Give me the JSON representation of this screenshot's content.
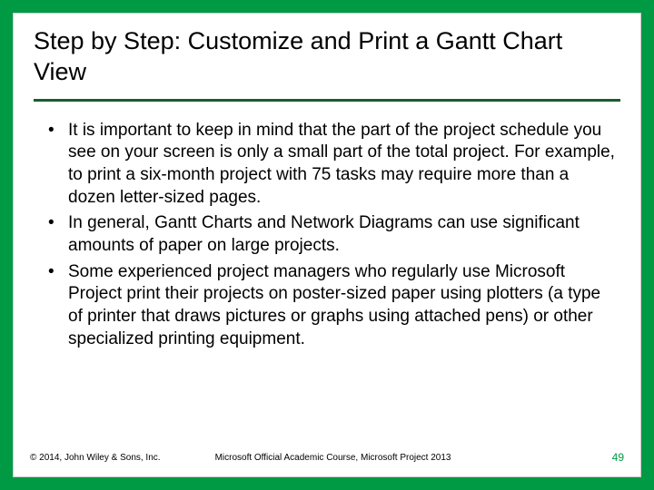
{
  "colors": {
    "frame": "#009a44",
    "slide_bg": "#ffffff",
    "slide_border": "#cccccc",
    "title_underline": "#1a5c2e",
    "text": "#000000",
    "page_number": "#009a44"
  },
  "typography": {
    "title_fontsize": 27,
    "title_weight": 400,
    "body_fontsize": 19,
    "footer_fontsize": 10,
    "page_number_fontsize": 12,
    "font_family": "Arial"
  },
  "layout": {
    "frame_padding": 14,
    "title_padding_x": 22,
    "body_padding_x": 28,
    "bullet_indent": 32
  },
  "title": "Step by Step: Customize and Print a Gantt Chart View",
  "bullets": [
    "It is important to keep in mind that the part of the project schedule you see on your screen is only a small part of the total project. For example, to print a six-month project with 75 tasks may require more than a dozen letter-sized pages.",
    "In general, Gantt Charts and Network Diagrams can use significant amounts of paper on large projects.",
    "Some experienced project managers who regularly use Microsoft Project print their projects on poster-sized paper using plotters (a type of printer that draws pictures or graphs using attached pens) or other specialized printing equipment."
  ],
  "footer": {
    "copyright": "© 2014, John Wiley & Sons, Inc.",
    "course": "Microsoft Official Academic Course, Microsoft Project 2013",
    "page": "49"
  }
}
